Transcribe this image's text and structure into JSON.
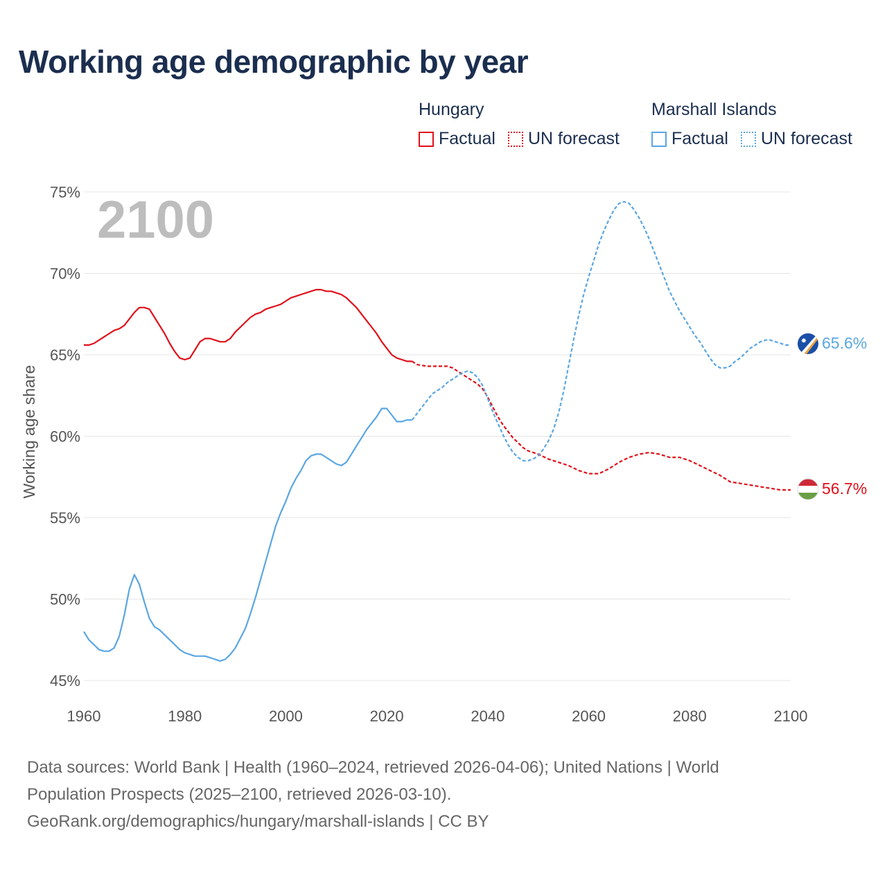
{
  "title": "Working age demographic by year",
  "legend": {
    "groups": [
      {
        "name": "Hungary",
        "factual_label": "Factual",
        "forecast_label": "UN forecast",
        "color": "#e0101a"
      },
      {
        "name": "Marshall Islands",
        "factual_label": "Factual",
        "forecast_label": "UN forecast",
        "color": "#5aa6e3"
      }
    ]
  },
  "year_watermark": "2100",
  "footer": {
    "line1": "Data sources: World Bank | Health (1960–2024, retrieved 2026-04-06); United Nations | World",
    "line2": "Population Prospects (2025–2100, retrieved 2026-03-10).",
    "line3": "GeoRank.org/demographics/hungary/marshall-islands | CC BY"
  },
  "chart_data": {
    "type": "line",
    "title": "Working age demographic by year",
    "xlabel": "",
    "ylabel": "Working age share",
    "xlim": [
      1960,
      2100
    ],
    "ylim": [
      45,
      75
    ],
    "x_ticks": [
      1960,
      1980,
      2000,
      2020,
      2040,
      2060,
      2080,
      2100
    ],
    "y_ticks": [
      45,
      50,
      55,
      60,
      65,
      70,
      75
    ],
    "y_tick_labels": [
      "45%",
      "50%",
      "55%",
      "60%",
      "65%",
      "70%",
      "75%"
    ],
    "grid": true,
    "series": [
      {
        "name": "Hungary",
        "color": "#e0101a",
        "end_label": "56.7%",
        "factual": {
          "x": [
            1960,
            1961,
            1962,
            1963,
            1964,
            1965,
            1966,
            1967,
            1968,
            1969,
            1970,
            1971,
            1972,
            1973,
            1974,
            1975,
            1976,
            1977,
            1978,
            1979,
            1980,
            1981,
            1982,
            1983,
            1984,
            1985,
            1986,
            1987,
            1988,
            1989,
            1990,
            1991,
            1992,
            1993,
            1994,
            1995,
            1996,
            1997,
            1998,
            1999,
            2000,
            2001,
            2002,
            2003,
            2004,
            2005,
            2006,
            2007,
            2008,
            2009,
            2010,
            2011,
            2012,
            2013,
            2014,
            2015,
            2016,
            2017,
            2018,
            2019,
            2020,
            2021,
            2022,
            2023,
            2024,
            2025
          ],
          "y": [
            65.6,
            65.6,
            65.7,
            65.9,
            66.1,
            66.3,
            66.5,
            66.6,
            66.8,
            67.2,
            67.6,
            67.9,
            67.9,
            67.8,
            67.3,
            66.8,
            66.3,
            65.7,
            65.2,
            64.8,
            64.7,
            64.8,
            65.3,
            65.8,
            66.0,
            66.0,
            65.9,
            65.8,
            65.8,
            66.0,
            66.4,
            66.7,
            67.0,
            67.3,
            67.5,
            67.6,
            67.8,
            67.9,
            68.0,
            68.1,
            68.3,
            68.5,
            68.6,
            68.7,
            68.8,
            68.9,
            69.0,
            69.0,
            68.9,
            68.9,
            68.8,
            68.7,
            68.5,
            68.2,
            67.9,
            67.5,
            67.1,
            66.7,
            66.3,
            65.8,
            65.4,
            65.0,
            64.8,
            64.7,
            64.6,
            64.6
          ]
        },
        "forecast": {
          "x": [
            2025,
            2026,
            2028,
            2030,
            2032,
            2033,
            2034,
            2035,
            2036,
            2037,
            2038,
            2039,
            2040,
            2041,
            2042,
            2043,
            2044,
            2045,
            2046,
            2047,
            2048,
            2050,
            2052,
            2054,
            2056,
            2058,
            2060,
            2062,
            2064,
            2066,
            2068,
            2070,
            2072,
            2074,
            2076,
            2078,
            2080,
            2082,
            2084,
            2086,
            2088,
            2090,
            2092,
            2094,
            2096,
            2098,
            2100
          ],
          "y": [
            64.6,
            64.4,
            64.3,
            64.3,
            64.3,
            64.2,
            64.0,
            63.8,
            63.6,
            63.4,
            63.2,
            62.9,
            62.4,
            61.8,
            61.2,
            60.7,
            60.3,
            59.9,
            59.6,
            59.3,
            59.1,
            58.9,
            58.6,
            58.4,
            58.2,
            57.9,
            57.7,
            57.7,
            58.0,
            58.4,
            58.7,
            58.9,
            59.0,
            58.9,
            58.7,
            58.7,
            58.5,
            58.2,
            57.9,
            57.6,
            57.2,
            57.1,
            57.0,
            56.9,
            56.8,
            56.7,
            56.7
          ]
        }
      },
      {
        "name": "Marshall Islands",
        "color": "#5aa6e3",
        "end_label": "65.6%",
        "factual": {
          "x": [
            1960,
            1961,
            1962,
            1963,
            1964,
            1965,
            1966,
            1967,
            1968,
            1969,
            1970,
            1971,
            1972,
            1973,
            1974,
            1975,
            1976,
            1977,
            1978,
            1979,
            1980,
            1981,
            1982,
            1983,
            1984,
            1985,
            1986,
            1987,
            1988,
            1989,
            1990,
            1991,
            1992,
            1993,
            1994,
            1995,
            1996,
            1997,
            1998,
            1999,
            2000,
            2001,
            2002,
            2003,
            2004,
            2005,
            2006,
            2007,
            2008,
            2009,
            2010,
            2011,
            2012,
            2013,
            2014,
            2015,
            2016,
            2017,
            2018,
            2019,
            2020,
            2021,
            2022,
            2023,
            2024,
            2025
          ],
          "y": [
            48.0,
            47.5,
            47.2,
            46.9,
            46.8,
            46.8,
            47.0,
            47.7,
            49.0,
            50.6,
            51.5,
            50.9,
            49.8,
            48.8,
            48.3,
            48.1,
            47.8,
            47.5,
            47.2,
            46.9,
            46.7,
            46.6,
            46.5,
            46.5,
            46.5,
            46.4,
            46.3,
            46.2,
            46.3,
            46.6,
            47.0,
            47.6,
            48.2,
            49.1,
            50.1,
            51.2,
            52.3,
            53.4,
            54.5,
            55.3,
            56.0,
            56.8,
            57.4,
            57.9,
            58.5,
            58.8,
            58.9,
            58.9,
            58.7,
            58.5,
            58.3,
            58.2,
            58.4,
            58.9,
            59.4,
            59.9,
            60.4,
            60.8,
            61.2,
            61.7,
            61.7,
            61.3,
            60.9,
            60.9,
            61.0,
            61.0
          ]
        },
        "forecast": {
          "x": [
            2025,
            2026,
            2027,
            2028,
            2029,
            2030,
            2031,
            2032,
            2033,
            2034,
            2035,
            2036,
            2037,
            2038,
            2039,
            2040,
            2041,
            2042,
            2043,
            2044,
            2045,
            2046,
            2047,
            2048,
            2049,
            2050,
            2051,
            2052,
            2053,
            2054,
            2055,
            2056,
            2057,
            2058,
            2059,
            2060,
            2061,
            2062,
            2063,
            2064,
            2065,
            2066,
            2067,
            2068,
            2069,
            2070,
            2071,
            2072,
            2073,
            2074,
            2075,
            2076,
            2077,
            2078,
            2079,
            2080,
            2081,
            2082,
            2083,
            2084,
            2085,
            2086,
            2087,
            2088,
            2089,
            2090,
            2091,
            2092,
            2093,
            2094,
            2095,
            2096,
            2097,
            2098,
            2099,
            2100
          ],
          "y": [
            61.0,
            61.4,
            61.8,
            62.2,
            62.6,
            62.8,
            63.0,
            63.3,
            63.5,
            63.7,
            63.9,
            64.0,
            63.9,
            63.6,
            63.1,
            62.3,
            61.5,
            60.8,
            60.1,
            59.5,
            59.0,
            58.7,
            58.5,
            58.5,
            58.6,
            58.8,
            59.2,
            59.7,
            60.4,
            61.4,
            62.7,
            64.3,
            65.9,
            67.4,
            68.7,
            69.8,
            70.8,
            71.8,
            72.6,
            73.3,
            73.9,
            74.3,
            74.4,
            74.3,
            73.9,
            73.4,
            72.8,
            72.1,
            71.3,
            70.5,
            69.7,
            68.9,
            68.3,
            67.7,
            67.2,
            66.7,
            66.2,
            65.8,
            65.3,
            64.8,
            64.4,
            64.2,
            64.2,
            64.3,
            64.6,
            64.8,
            65.1,
            65.4,
            65.6,
            65.8,
            65.9,
            65.9,
            65.8,
            65.7,
            65.6,
            65.6
          ]
        }
      }
    ]
  }
}
